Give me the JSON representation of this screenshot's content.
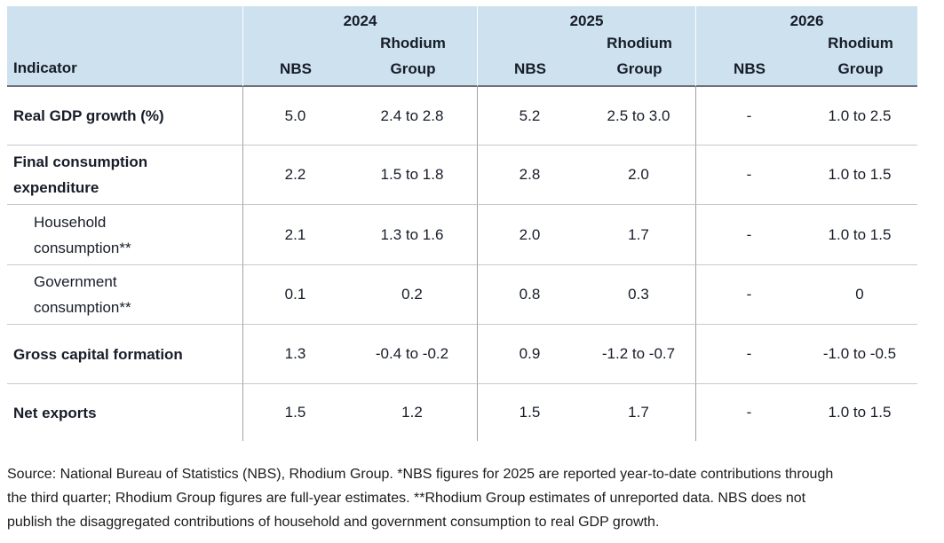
{
  "chart_data": {
    "type": "table",
    "indicator_header": "Indicator",
    "column_groups": [
      "2024",
      "2025",
      "2026"
    ],
    "sub_header": {
      "nbs": "NBS",
      "rhodium_line1": "Rhodium",
      "rhodium_line2": "Group"
    },
    "columns": [
      "Indicator",
      "2024 NBS",
      "2024 Rhodium Group",
      "2025 NBS",
      "2025 Rhodium Group",
      "2026 NBS",
      "2026 Rhodium Group"
    ],
    "rows": [
      {
        "label": "Real GDP growth (%)",
        "indent": false,
        "values": [
          "5.0",
          "2.4 to 2.8",
          "5.2",
          "2.5 to 3.0",
          "-",
          "1.0 to 2.5"
        ]
      },
      {
        "label": "Final consumption expenditure",
        "indent": false,
        "values": [
          "2.2",
          "1.5 to 1.8",
          "2.8",
          "2.0",
          "-",
          "1.0 to 1.5"
        ]
      },
      {
        "label": "Household consumption**",
        "indent": true,
        "values": [
          "2.1",
          "1.3 to 1.6",
          "2.0",
          "1.7",
          "-",
          "1.0 to 1.5"
        ]
      },
      {
        "label": "Government consumption**",
        "indent": true,
        "values": [
          "0.1",
          "0.2",
          "0.8",
          "0.3",
          "-",
          "0"
        ]
      },
      {
        "label": "Gross capital formation",
        "indent": false,
        "values": [
          "1.3",
          "-0.4 to -0.2",
          "0.9",
          "-1.2 to -0.7",
          "-",
          "-1.0 to -0.5"
        ]
      },
      {
        "label": "Net exports",
        "indent": false,
        "values": [
          "1.5",
          "1.2",
          "1.5",
          "1.7",
          "-",
          "1.0 to 1.5"
        ]
      }
    ],
    "footnote_lines": [
      "Source: National Bureau of Statistics (NBS), Rhodium Group. *NBS figures for 2025 are reported year-to-date contributions through",
      "the third quarter; Rhodium Group figures are full-year estimates. **Rhodium Group estimates of unreported data. NBS does not",
      "publish the disaggregated contributions of household and government consumption to real GDP growth."
    ]
  },
  "colors": {
    "header_bg": "#cde2ee",
    "header_rule": "#6e737b",
    "row_rule": "#c7c9cc",
    "column_rule": "#9fa2a7",
    "text": "#171c28"
  }
}
